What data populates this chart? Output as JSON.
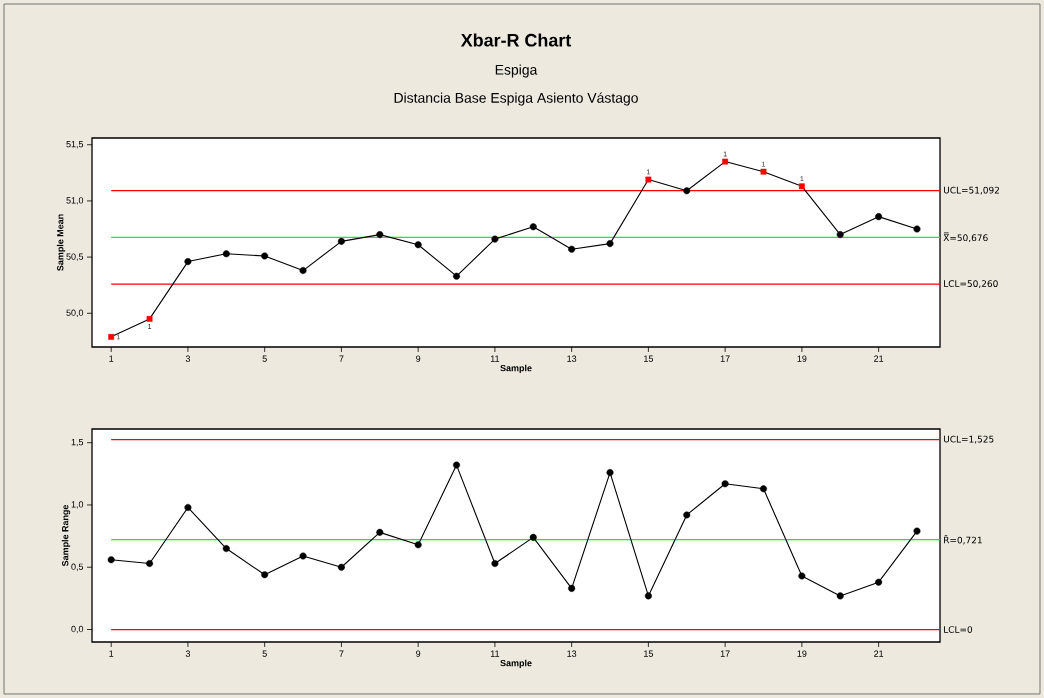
{
  "chart_data": [
    {
      "type": "line",
      "title": "Xbar-R Chart",
      "subtitle": "Espiga",
      "annotations": [
        "Distancia Base Espiga Asiento Vástago",
        {
          "text": "1",
          "x": 1,
          "y": 49.79
        },
        {
          "text": "1",
          "x": 2,
          "y": 49.95
        },
        {
          "text": "1",
          "x": 15,
          "y": 51.19
        },
        {
          "text": "1",
          "x": 17,
          "y": 51.35
        },
        {
          "text": "1",
          "x": 18,
          "y": 51.26
        },
        {
          "text": "1",
          "x": 19,
          "y": 51.13
        }
      ],
      "xlabel": "Sample",
      "ylabel": "Sample Mean",
      "x": [
        1,
        2,
        3,
        4,
        5,
        6,
        7,
        8,
        9,
        10,
        11,
        12,
        13,
        14,
        15,
        16,
        17,
        18,
        19,
        20,
        21,
        22
      ],
      "xlim": [
        0.5,
        22.6
      ],
      "xticks": [
        1,
        3,
        5,
        7,
        9,
        11,
        13,
        15,
        17,
        19,
        21
      ],
      "ylim": [
        49.7,
        51.56
      ],
      "yticks": [
        {
          "value": 50.0,
          "label": "50,0"
        },
        {
          "value": 50.5,
          "label": "50,5"
        },
        {
          "value": 51.0,
          "label": "51,0"
        },
        {
          "value": 51.5,
          "label": "51,5"
        }
      ],
      "series": [
        {
          "type": "line",
          "marker": "none",
          "color": "#000000",
          "values": [
            49.79,
            49.95,
            50.46,
            50.53,
            50.51,
            50.38,
            50.64,
            50.7,
            50.61,
            50.33,
            50.66,
            50.77,
            50.57,
            50.62,
            51.19,
            51.09,
            51.35,
            51.26,
            51.13,
            50.7,
            50.86,
            50.75
          ]
        },
        {
          "type": "scatter",
          "marker": "circle",
          "color": "#000000",
          "values": [
            null,
            null,
            50.46,
            50.53,
            50.51,
            50.38,
            50.64,
            50.7,
            50.61,
            50.33,
            50.66,
            50.77,
            50.57,
            50.62,
            null,
            51.09,
            null,
            null,
            null,
            50.7,
            50.86,
            50.75
          ]
        },
        {
          "type": "scatter",
          "marker": "square",
          "color": "#ff0000",
          "values": [
            49.79,
            49.95,
            null,
            null,
            null,
            null,
            null,
            null,
            null,
            null,
            null,
            null,
            null,
            null,
            51.19,
            null,
            51.35,
            51.26,
            51.13,
            null,
            null,
            null
          ]
        }
      ],
      "ref_lines": [
        {
          "axis": "y",
          "value": 51.092,
          "label": "UCL=51,092",
          "color": "#ff0000"
        },
        {
          "axis": "y",
          "value": 50.676,
          "label": "X̿=50,676",
          "color": "#00ff00"
        },
        {
          "axis": "y",
          "value": 50.26,
          "label": "LCL=50,260",
          "color": "#ff0000"
        }
      ]
    },
    {
      "type": "line",
      "xlabel": "Sample",
      "ylabel": "Sample Range",
      "x": [
        1,
        2,
        3,
        4,
        5,
        6,
        7,
        8,
        9,
        10,
        11,
        12,
        13,
        14,
        15,
        16,
        17,
        18,
        19,
        20,
        21,
        22
      ],
      "xlim": [
        0.5,
        22.6
      ],
      "xticks": [
        1,
        3,
        5,
        7,
        9,
        11,
        13,
        15,
        17,
        19,
        21
      ],
      "ylim": [
        -0.1,
        1.61
      ],
      "yticks": [
        {
          "value": 0.0,
          "label": "0,0"
        },
        {
          "value": 0.5,
          "label": "0,5"
        },
        {
          "value": 1.0,
          "label": "1,0"
        },
        {
          "value": 1.5,
          "label": "1,5"
        }
      ],
      "series": [
        {
          "type": "line",
          "marker": "circle",
          "color": "#000000",
          "values": [
            0.56,
            0.53,
            0.98,
            0.65,
            0.44,
            0.59,
            0.5,
            0.78,
            0.68,
            1.32,
            0.53,
            0.74,
            0.33,
            1.26,
            0.27,
            0.92,
            1.17,
            1.13,
            0.43,
            0.27,
            0.38,
            0.79
          ]
        }
      ],
      "ref_lines": [
        {
          "axis": "y",
          "value": 1.525,
          "label": "UCL=1,525",
          "color": "#ff0000"
        },
        {
          "axis": "y",
          "value": 0.721,
          "label": "R̄=0,721",
          "color": "#00ff00"
        },
        {
          "axis": "y",
          "value": 0,
          "label": "LCL=0",
          "color": "#ff0000"
        }
      ]
    }
  ]
}
